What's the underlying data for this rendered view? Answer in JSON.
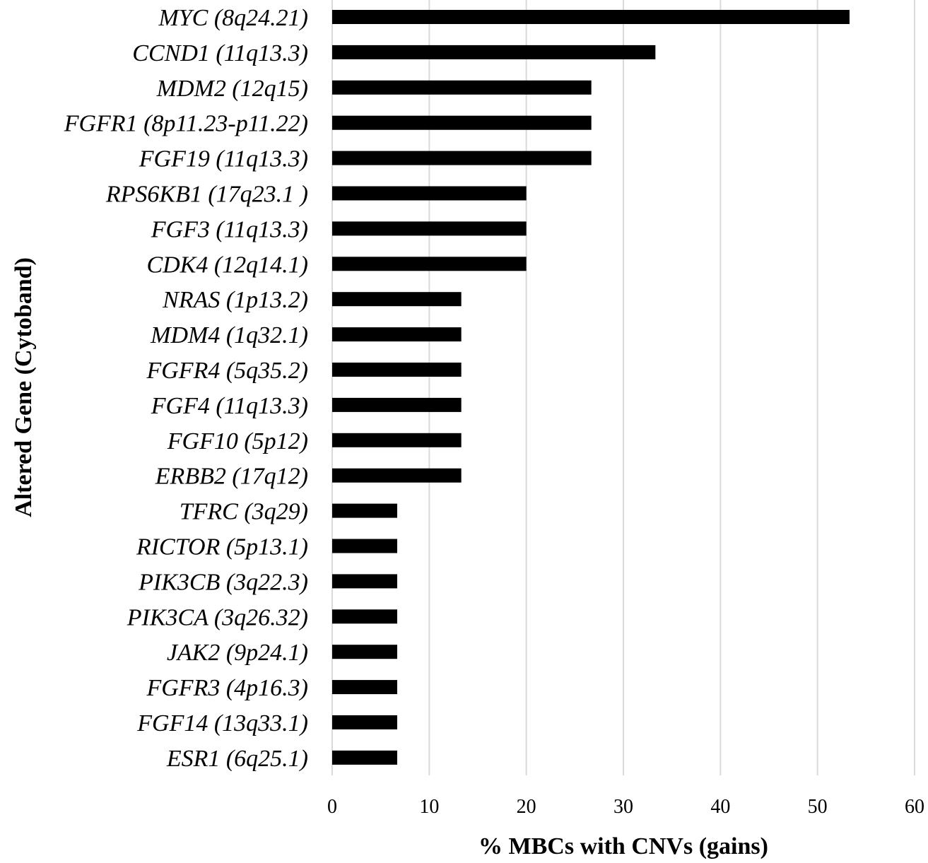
{
  "chart_data": {
    "type": "bar",
    "orientation": "horizontal",
    "categories": [
      "MYC (8q24.21)",
      "CCND1 (11q13.3)",
      "MDM2 (12q15)",
      "FGFR1 (8p11.23-p11.22)",
      "FGF19 (11q13.3)",
      "RPS6KB1 (17q23.1 )",
      "FGF3 (11q13.3)",
      "CDK4 (12q14.1)",
      "NRAS (1p13.2)",
      "MDM4 (1q32.1)",
      "FGFR4 (5q35.2)",
      "FGF4 (11q13.3)",
      "FGF10 (5p12)",
      "ERBB2 (17q12)",
      "TFRC (3q29)",
      "RICTOR (5p13.1)",
      "PIK3CB (3q22.3)",
      "PIK3CA (3q26.32)",
      "JAK2 (9p24.1)",
      "FGFR3 (4p16.3)",
      "FGF14 (13q33.1)",
      "ESR1 (6q25.1)"
    ],
    "values": [
      53.3,
      33.3,
      26.7,
      26.7,
      26.7,
      20.0,
      20.0,
      20.0,
      13.3,
      13.3,
      13.3,
      13.3,
      13.3,
      13.3,
      6.7,
      6.7,
      6.7,
      6.7,
      6.7,
      6.7,
      6.7,
      6.7
    ],
    "xlabel": "% MBCs with CNVs (gains)",
    "ylabel": "Altered Gene (Cytoband)",
    "xlim": [
      0,
      60
    ],
    "xticks": [
      "0",
      "10",
      "20",
      "30",
      "40",
      "50",
      "60"
    ],
    "grid": "vertical",
    "bar_color": "#000000",
    "grid_color": "#d9d9d9"
  }
}
